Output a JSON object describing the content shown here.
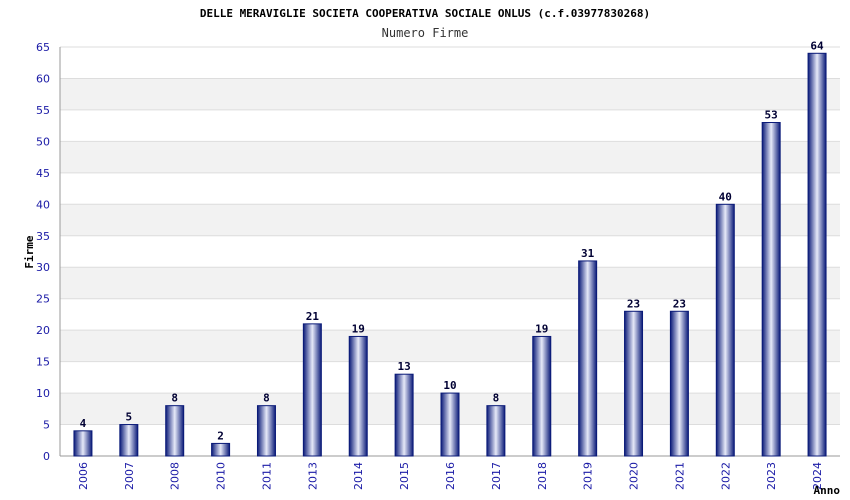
{
  "chart_data": {
    "type": "bar",
    "title": "DELLE MERAVIGLIE SOCIETA COOPERATIVA SOCIALE ONLUS (c.f.03977830268)",
    "subtitle": "Numero Firme",
    "xlabel": "Anno",
    "ylabel": "Firme",
    "ylim": [
      0,
      65
    ],
    "yticks": [
      0,
      5,
      10,
      15,
      20,
      25,
      30,
      35,
      40,
      45,
      50,
      55,
      60,
      65
    ],
    "grid": true,
    "categories": [
      "2006",
      "2007",
      "2008",
      "2010",
      "2011",
      "2013",
      "2014",
      "2015",
      "2016",
      "2017",
      "2018",
      "2019",
      "2020",
      "2021",
      "2022",
      "2023",
      "2024"
    ],
    "values": [
      4,
      5,
      8,
      2,
      8,
      21,
      19,
      13,
      10,
      8,
      19,
      31,
      23,
      23,
      40,
      53,
      64
    ],
    "colors": {
      "bar_edge": "#0a1a78",
      "bar_light": "#e6e9f8",
      "bar_mid": "#4a5cc0",
      "band": "#f2f2f2",
      "tick_text": "#1a1aa6"
    }
  }
}
